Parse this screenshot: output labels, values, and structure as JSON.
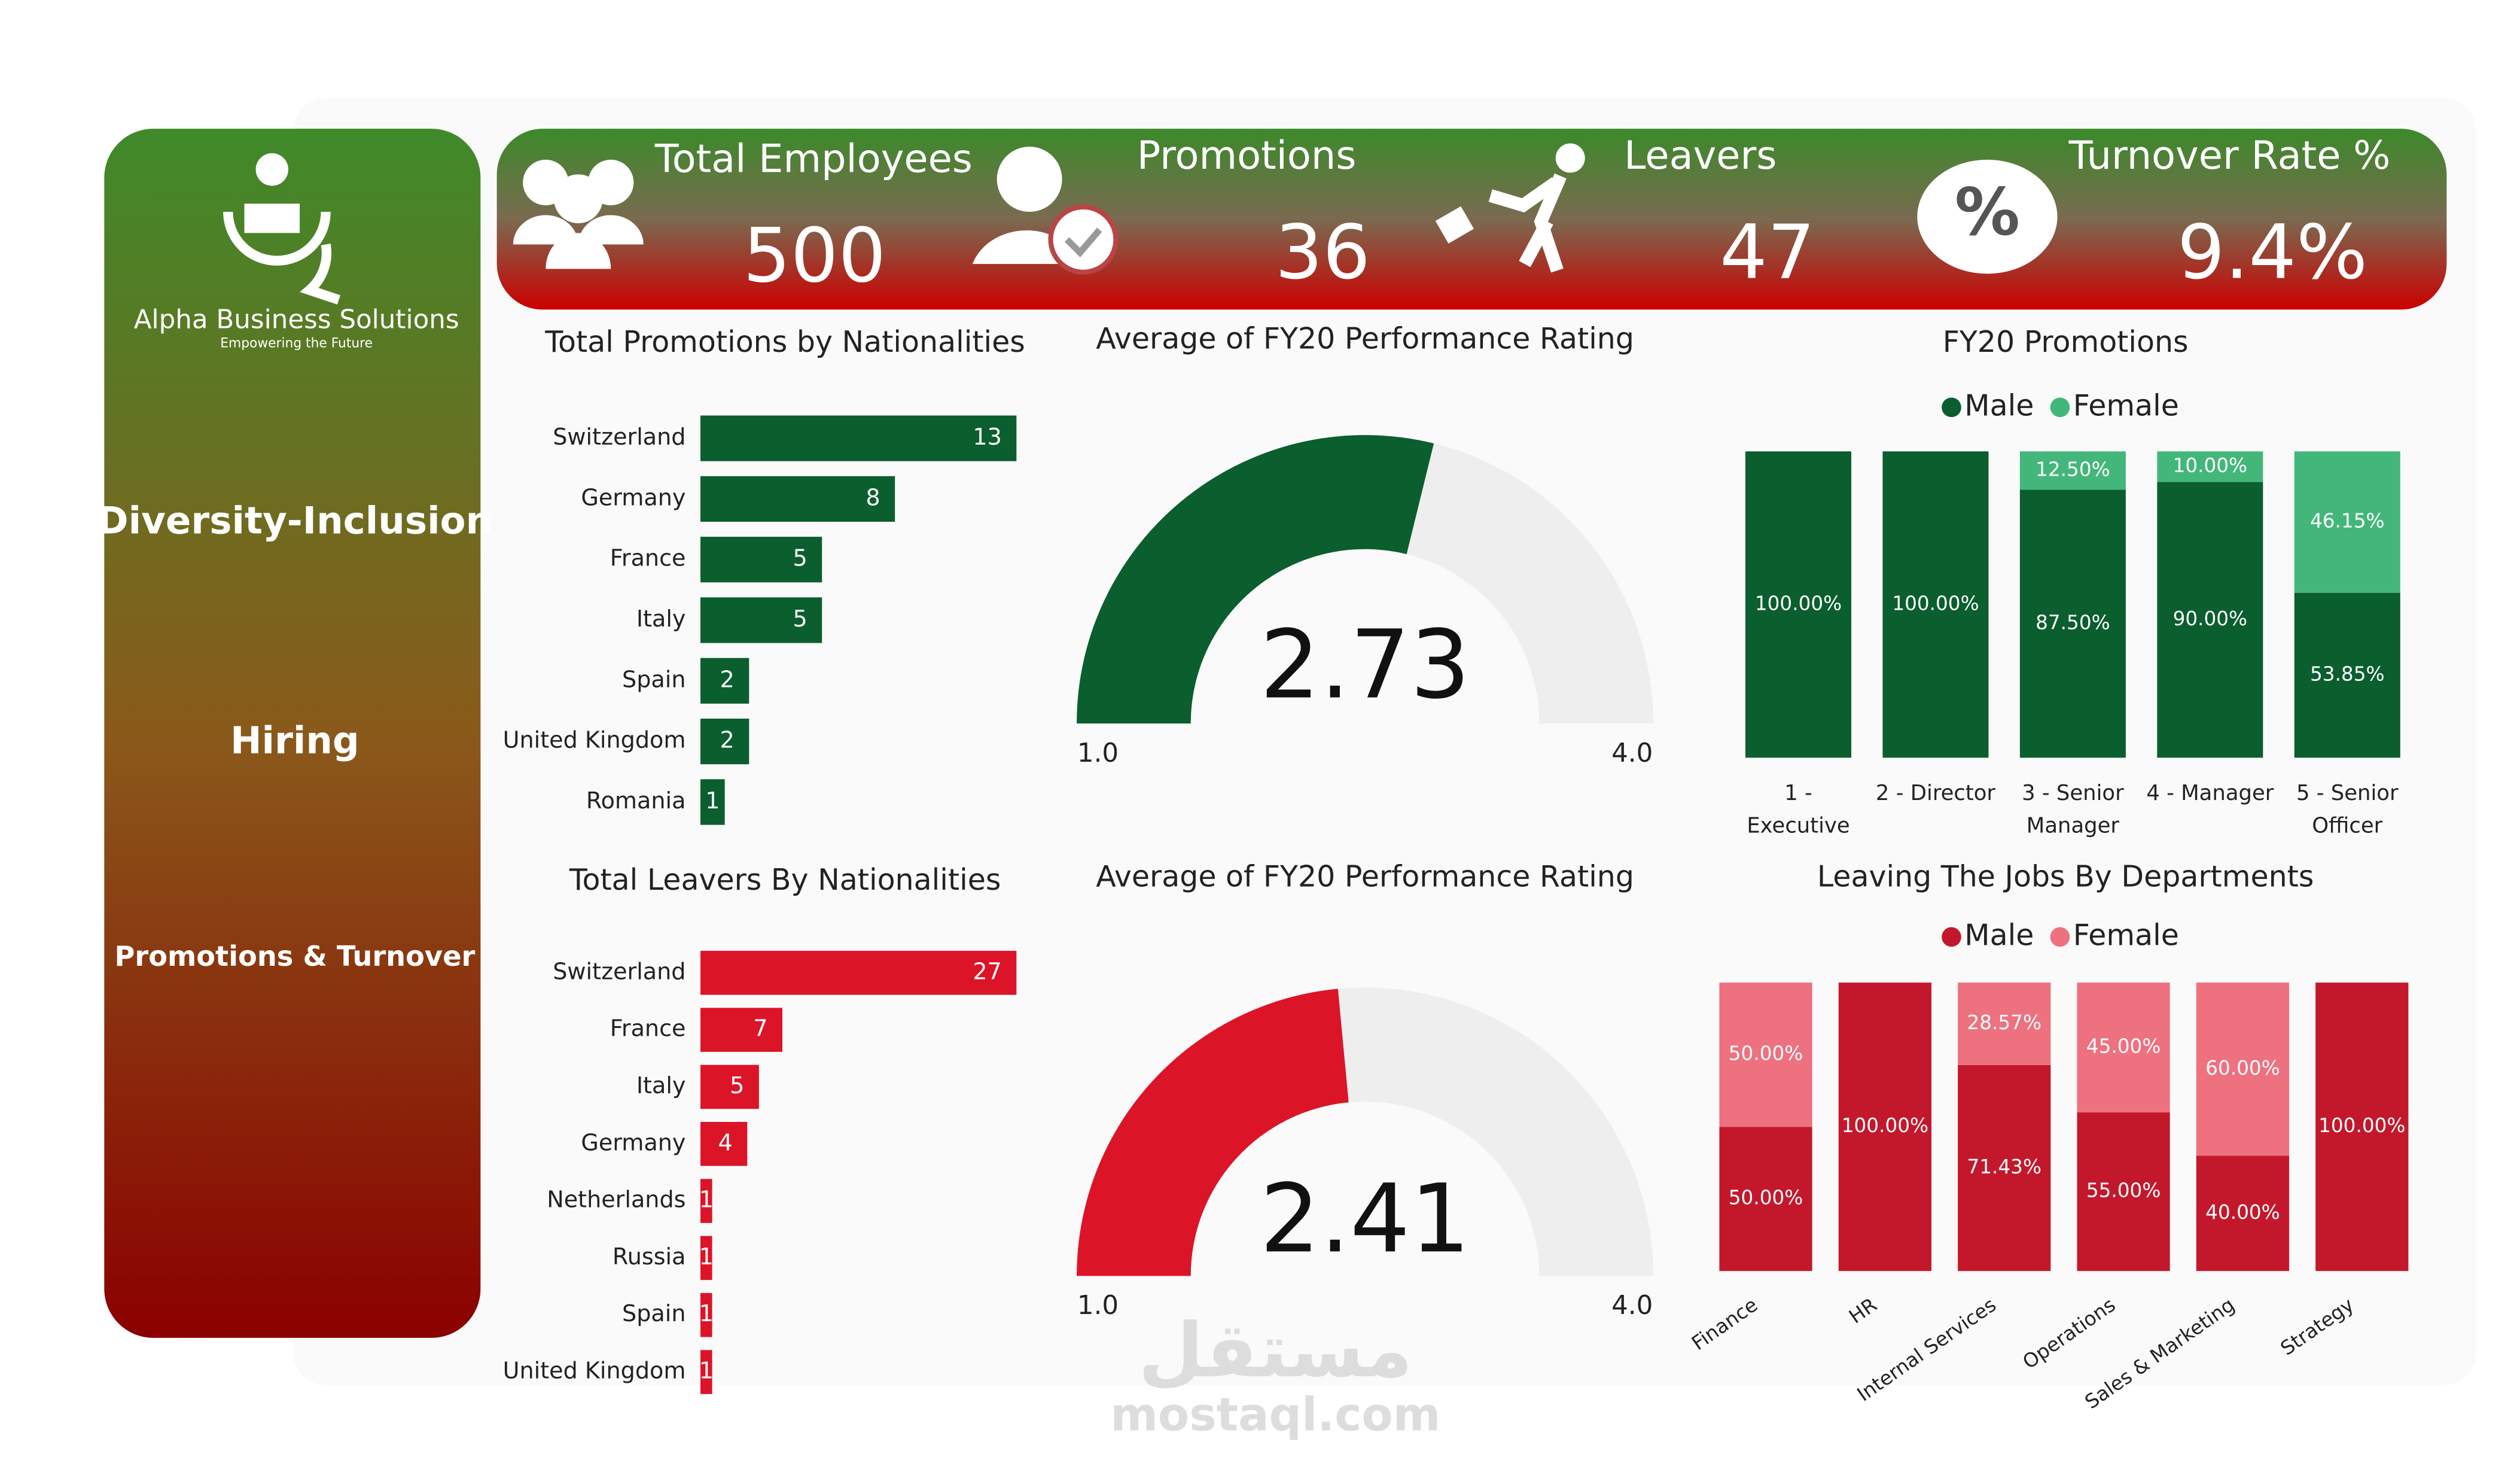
{
  "sidebar": {
    "company": "Alpha Business Solutions",
    "tagline": "Empowering the Future",
    "nav": [
      "Diversity-Inclusion",
      "Hiring",
      "Promotions & Turnover"
    ]
  },
  "kpis": [
    {
      "label": "Total Employees",
      "value": 500
    },
    {
      "label": "Promotions",
      "value": 36
    },
    {
      "label": "Leavers",
      "value": 47
    },
    {
      "label": "Turnover Rate %",
      "value": 9.4,
      "value_label": "9.4%"
    }
  ],
  "watermark": {
    "arabic": "مستقل",
    "latin": "mostaql.com"
  },
  "chart_data": [
    {
      "type": "hbar",
      "title": "Total Promotions by Nationalities",
      "categories": [
        "Switzerland",
        "Germany",
        "France",
        "Italy",
        "Spain",
        "United Kingdom",
        "Romania"
      ],
      "values": [
        13,
        8,
        5,
        5,
        2,
        2,
        1
      ],
      "color": "#0b5e2e"
    },
    {
      "type": "hbar",
      "title": "Total Leavers By Nationalities",
      "categories": [
        "Switzerland",
        "France",
        "Italy",
        "Germany",
        "Netherlands",
        "Russia",
        "Spain",
        "United Kingdom"
      ],
      "values": [
        27,
        7,
        5,
        4,
        1,
        1,
        1,
        1
      ],
      "color": "#dc1428"
    },
    {
      "type": "gauge",
      "title": "Average of FY20 Performance Rating",
      "value": 2.73,
      "lim": [
        1,
        4
      ],
      "ticks": [
        {
          "value": 1,
          "label": "1.0"
        },
        {
          "value": 4,
          "label": "4.0"
        }
      ],
      "color": "#0b5e2e",
      "track_color": "#eeeeee"
    },
    {
      "type": "gauge",
      "title": "Average of FY20 Performance Rating",
      "value": 2.41,
      "lim": [
        1,
        4
      ],
      "ticks": [
        {
          "value": 1,
          "label": "1.0"
        },
        {
          "value": 4,
          "label": "4.0"
        }
      ],
      "color": "#dc1428",
      "track_color": "#eeeeee"
    },
    {
      "type": "stacked",
      "title": "FY20 Promotions",
      "categories": [
        "1 - Executive",
        "2 - Director",
        "3 - Senior Manager",
        "4 - Manager",
        "5 - Senior Officer"
      ],
      "ylim": [
        0,
        100
      ],
      "series": [
        {
          "name": "Male",
          "color": "#0b5e2e",
          "values": [
            100,
            100,
            87.5,
            90,
            53.85
          ],
          "value_labels": [
            "100.00%",
            "100.00%",
            "87.50%",
            "90.00%",
            "53.85%"
          ]
        },
        {
          "name": "Female",
          "color": "#43b77a",
          "values": [
            null,
            null,
            12.5,
            10,
            46.15
          ],
          "value_labels": [
            null,
            null,
            "12.50%",
            "10.00%",
            "46.15%"
          ]
        }
      ]
    },
    {
      "type": "stacked",
      "title": "Leaving The Jobs By Departments",
      "categories": [
        "Finance",
        "HR",
        "Internal Services",
        "Operations",
        "Sales & Marketing",
        "Strategy"
      ],
      "ylim": [
        0,
        100
      ],
      "rotate_labels": true,
      "series": [
        {
          "name": "Male",
          "color": "#c3182c",
          "values": [
            50,
            100,
            71.43,
            55,
            40,
            100
          ],
          "value_labels": [
            "50.00%",
            "100.00%",
            "71.43%",
            "55.00%",
            "40.00%",
            "100.00%"
          ]
        },
        {
          "name": "Female",
          "color": "#ee717f",
          "values": [
            50,
            null,
            28.57,
            45,
            60,
            null
          ],
          "value_labels": [
            "50.00%",
            null,
            "28.57%",
            "45.00%",
            "60.00%",
            null
          ]
        }
      ]
    }
  ]
}
